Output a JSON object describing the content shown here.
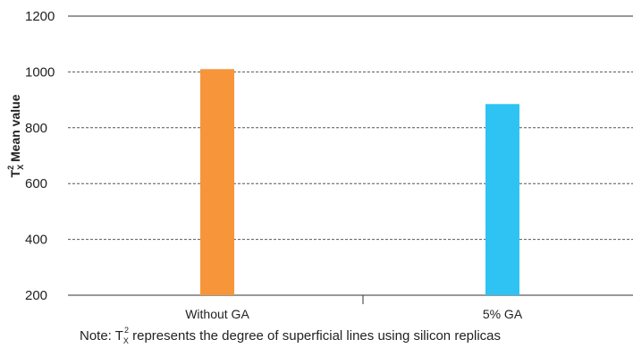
{
  "chart_data": {
    "type": "bar",
    "title": "",
    "xlabel": "",
    "ylabel": {
      "base": "T",
      "subscript": "X",
      "superscript": "2",
      "rest": " Mean value"
    },
    "categories": [
      "Without GA",
      "5% GA"
    ],
    "series": [
      {
        "values": [
          1010,
          885
        ]
      }
    ],
    "bar_colors": [
      "#f7953a",
      "#2fc3f3"
    ],
    "ylim": [
      200,
      1200
    ],
    "yticks": [
      200,
      400,
      600,
      800,
      1000,
      1200
    ],
    "grid": "horizontal dashed",
    "legend": "none",
    "note": {
      "prefix": "Note: T",
      "subscript": "X",
      "superscript": "2",
      "rest": " represents the degree of superficial lines using silicon replicas"
    }
  }
}
